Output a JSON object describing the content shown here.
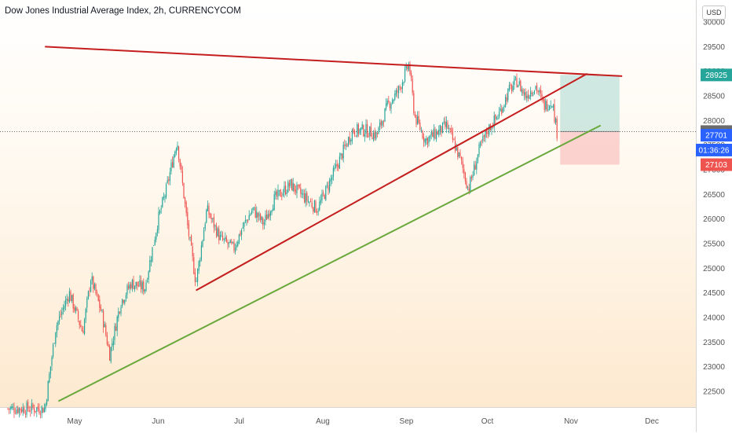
{
  "title": "Dow Jones Industrial Average Index, 2h, CURRENCYCOM",
  "currency": "USD",
  "colors": {
    "up": "#26a69a",
    "down": "#ef5350",
    "trend_red": "#c41e1e",
    "trend_green": "#6aa83c",
    "tp_zone": "rgba(38,166,154,0.22)",
    "sl_zone": "rgba(242,54,69,0.20)"
  },
  "chart_data": {
    "type": "candlestick",
    "ylim": [
      22000,
      30400
    ],
    "x_axis_months": [
      "May",
      "Jun",
      "Jul",
      "Aug",
      "Sep",
      "Oct",
      "Nov",
      "Dec"
    ],
    "y_ticks": [
      22500,
      23000,
      23500,
      24000,
      24500,
      25000,
      25500,
      26000,
      26500,
      27000,
      27500,
      28000,
      28500,
      29000,
      29500,
      30000
    ],
    "price_path": [
      [
        "Apr 20",
        22150
      ],
      [
        "Apr 24",
        23800
      ],
      [
        "Apr 29",
        24500
      ],
      [
        "May 4",
        23700
      ],
      [
        "May 7",
        24800
      ],
      [
        "May 11",
        24100
      ],
      [
        "May 14",
        23250
      ],
      [
        "May 18",
        24300
      ],
      [
        "May 22",
        24700
      ],
      [
        "May 27",
        24600
      ],
      [
        "Jun 1",
        26000
      ],
      [
        "Jun 4",
        26600
      ],
      [
        "Jun 8",
        27600
      ],
      [
        "Jun 12",
        25800
      ],
      [
        "Jun 15",
        24700
      ],
      [
        "Jun 19",
        26200
      ],
      [
        "Jun 24",
        25600
      ],
      [
        "Jun 29",
        25400
      ],
      [
        "Jul 2",
        25800
      ],
      [
        "Jul 6",
        26200
      ],
      [
        "Jul 10",
        25900
      ],
      [
        "Jul 14",
        26400
      ],
      [
        "Jul 20",
        26700
      ],
      [
        "Jul 24",
        26500
      ],
      [
        "Jul 30",
        26200
      ],
      [
        "Aug 4",
        26800
      ],
      [
        "Aug 8",
        27300
      ],
      [
        "Aug 12",
        27800
      ],
      [
        "Aug 17",
        27800
      ],
      [
        "Aug 21",
        27700
      ],
      [
        "Aug 25",
        28300
      ],
      [
        "Aug 29",
        28600
      ],
      [
        "Sep 2",
        29150
      ],
      [
        "Sep 4",
        28100
      ],
      [
        "Sep 8",
        27600
      ],
      [
        "Sep 11",
        27700
      ],
      [
        "Sep 16",
        27900
      ],
      [
        "Sep 21",
        27200
      ],
      [
        "Sep 24",
        26600
      ],
      [
        "Sep 28",
        27400
      ],
      [
        "Oct 1",
        27800
      ],
      [
        "Oct 5",
        28100
      ],
      [
        "Oct 9",
        28600
      ],
      [
        "Oct 12",
        28800
      ],
      [
        "Oct 15",
        28500
      ],
      [
        "Oct 19",
        28700
      ],
      [
        "Oct 22",
        28300
      ],
      [
        "Oct 25",
        28400
      ],
      [
        "Oct 27",
        27700
      ],
      [
        "Oct 28",
        27700
      ]
    ],
    "trendlines": [
      {
        "name": "upper-resistance",
        "color": "trend_red",
        "start": [
          "Apr 20",
          29500
        ],
        "end": [
          "Nov 20",
          28900
        ]
      },
      {
        "name": "channel-top",
        "color": "trend_red",
        "start": [
          "Jun 15",
          24550
        ],
        "end": [
          "Nov 7",
          28950
        ]
      },
      {
        "name": "channel-bottom",
        "color": "trend_green",
        "start": [
          "Apr 25",
          22300
        ],
        "end": [
          "Nov 12",
          27900
        ]
      }
    ],
    "position": {
      "start": "Oct 28",
      "end": "Nov 19",
      "entry": 27775,
      "take_profit": 28925,
      "stop_loss": 27103
    },
    "price_labels": [
      {
        "value": 28925,
        "text": "28925",
        "color": "#26a69a"
      },
      {
        "value": 27775,
        "text": "27775",
        "color": "#6b6b6b"
      },
      {
        "value": 27701,
        "text": "27701",
        "color": "#2962ff"
      },
      {
        "value": 27400,
        "text": "01:36:26",
        "color": "#2962ff"
      },
      {
        "value": 27103,
        "text": "27103",
        "color": "#ef5350"
      }
    ]
  }
}
